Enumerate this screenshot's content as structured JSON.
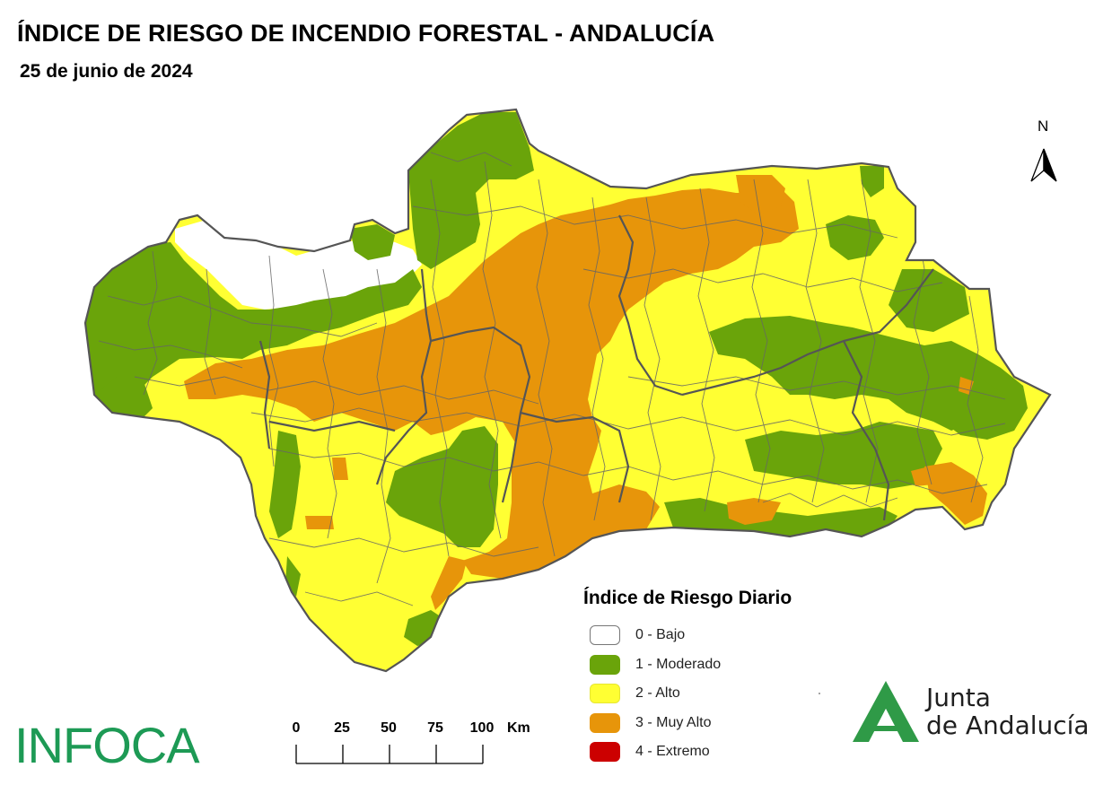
{
  "header": {
    "title": "ÍNDICE DE RIESGO DE INCENDIO FORESTAL - ANDALUCÍA",
    "date": "25 de junio de 2024"
  },
  "north_arrow": {
    "label": "N"
  },
  "legend": {
    "title": "Índice de Riesgo Diario",
    "items": [
      {
        "label": "0 - Bajo",
        "color": "#ffffff"
      },
      {
        "label": "1 - Moderado",
        "color": "#6aa40a"
      },
      {
        "label": "2 - Alto",
        "color": "#ffff33"
      },
      {
        "label": "3 - Muy Alto",
        "color": "#e7950a"
      },
      {
        "label": "4 - Extremo",
        "color": "#cc0000"
      }
    ]
  },
  "scale_bar": {
    "ticks": [
      "0",
      "25",
      "50",
      "75",
      "100"
    ],
    "unit": "Km"
  },
  "logos": {
    "infoca": "INFOCA",
    "junta_line1": "Junta",
    "junta_line2": "de Andalucía"
  },
  "colors": {
    "bajo": "#ffffff",
    "moderado": "#6aa40a",
    "alto": "#ffff33",
    "muy_alto": "#e7950a",
    "extremo": "#cc0000",
    "infoca_green": "#1d9a55",
    "junta_green": "#2f9a47"
  }
}
